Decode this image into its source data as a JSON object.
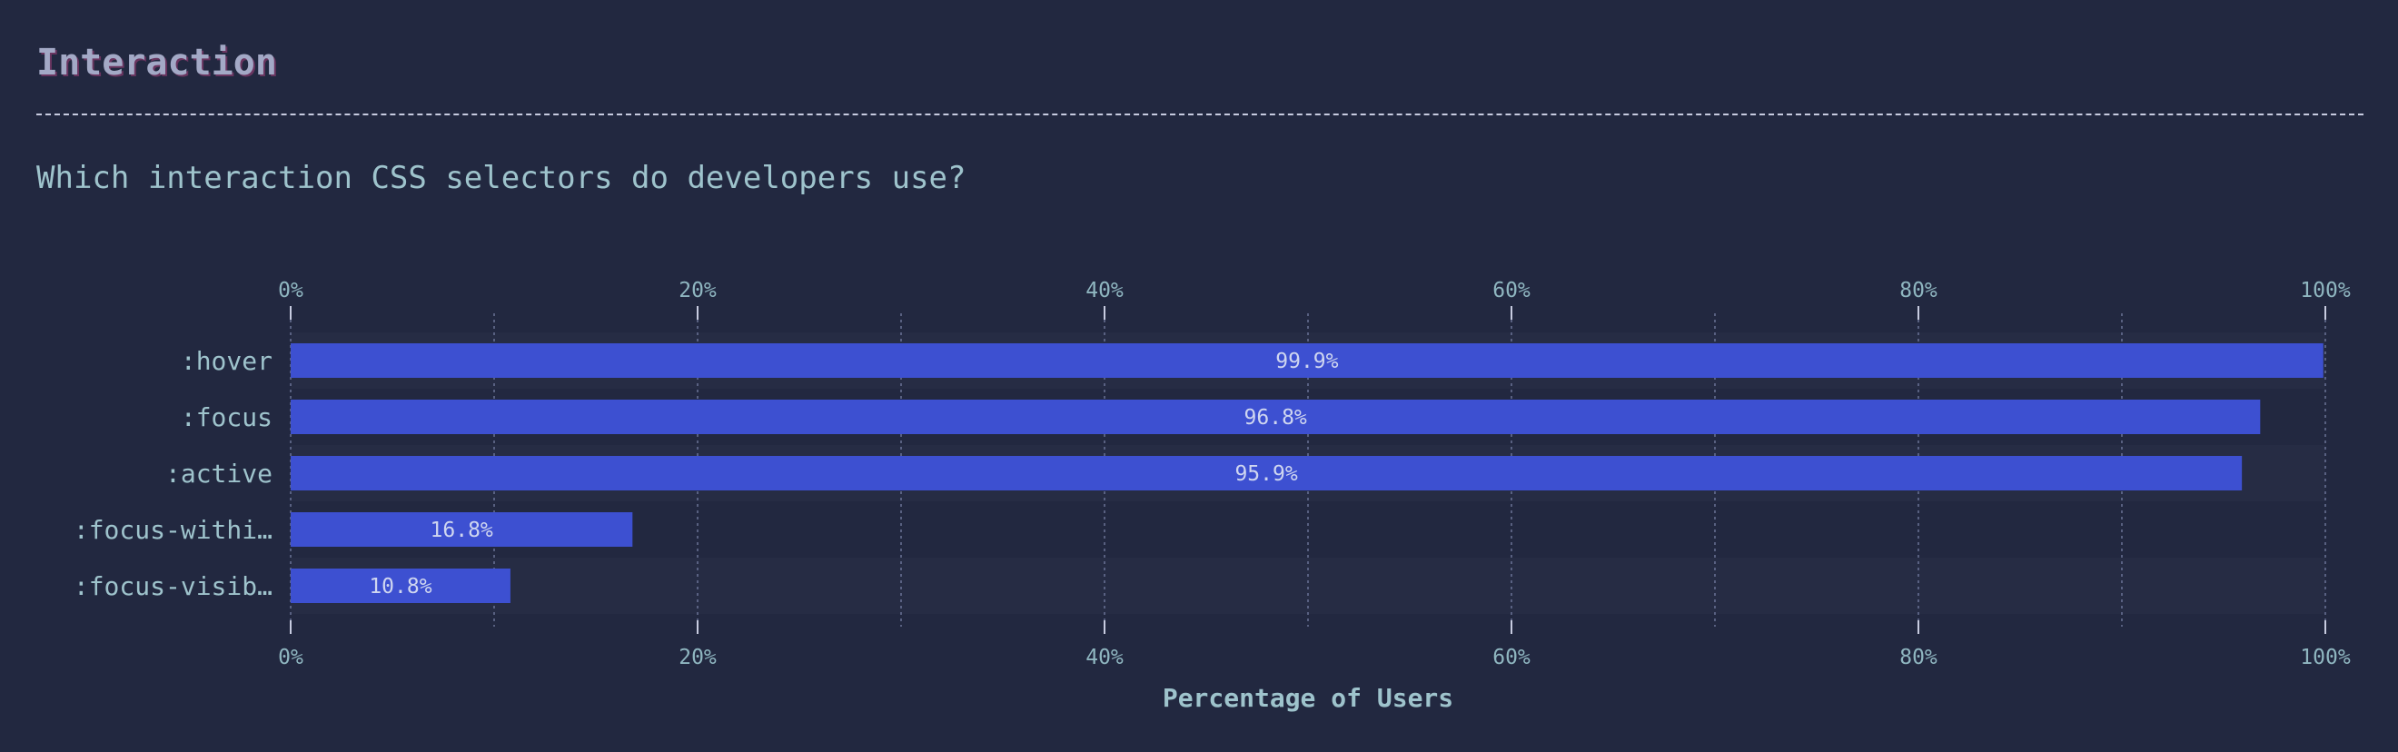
{
  "section": {
    "title": "Interaction"
  },
  "chart_data": {
    "type": "bar",
    "orientation": "horizontal",
    "title": "Which interaction CSS selectors do developers use?",
    "categories": [
      ":hover",
      ":focus",
      ":active",
      ":focus-within",
      ":focus-visible"
    ],
    "category_labels": [
      ":hover",
      ":focus",
      ":active",
      ":focus-withi…",
      ":focus-visib…"
    ],
    "values": [
      99.9,
      96.8,
      95.9,
      16.8,
      10.8
    ],
    "value_labels": [
      "99.9%",
      "96.8%",
      "95.9%",
      "16.8%",
      "10.8%"
    ],
    "xlabel": "Percentage of Users",
    "ylabel": "",
    "xlim": [
      0,
      100
    ],
    "xticks": [
      0,
      20,
      40,
      60,
      80,
      100
    ],
    "xtick_labels": [
      "0%",
      "20%",
      "40%",
      "60%",
      "80%",
      "100%"
    ],
    "minor_grid": [
      10,
      30,
      50,
      70,
      90
    ],
    "grid": true,
    "bar_color": "#3d50d1",
    "stripe_color": "#262c44",
    "grid_color": "#6a7396"
  }
}
